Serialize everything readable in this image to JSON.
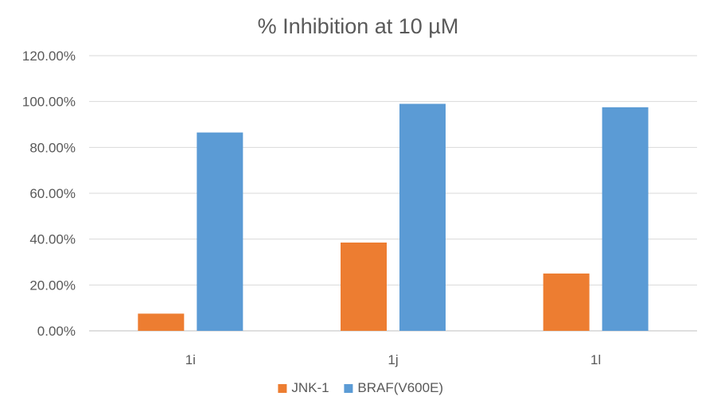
{
  "chart_data": {
    "type": "bar",
    "title": "% Inhibition at 10 µM",
    "xlabel": "",
    "ylabel": "",
    "categories": [
      "1i",
      "1j",
      "1l"
    ],
    "series": [
      {
        "name": "JNK-1",
        "color": "#ed7d31",
        "values": [
          7.5,
          38.5,
          25.0
        ]
      },
      {
        "name": "BRAF(V600E)",
        "color": "#5b9bd5",
        "values": [
          86.5,
          99.0,
          97.5
        ]
      }
    ],
    "ylim": [
      0,
      120
    ],
    "yticks": [
      0,
      20,
      40,
      60,
      80,
      100,
      120
    ],
    "ytick_labels": [
      "0.00%",
      "20.00%",
      "40.00%",
      "60.00%",
      "80.00%",
      "100.00%",
      "120.00%"
    ],
    "grid": true,
    "legend_position": "bottom-center"
  }
}
